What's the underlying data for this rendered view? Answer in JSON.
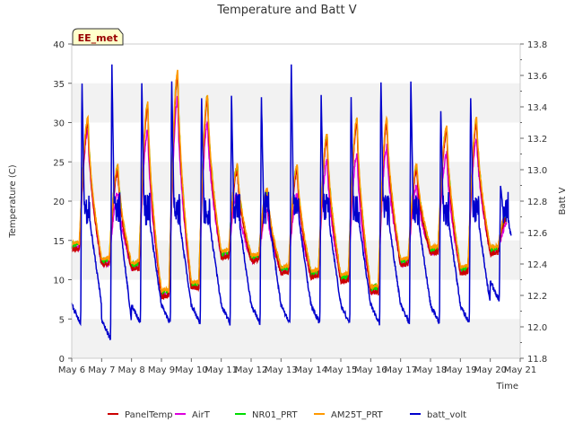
{
  "chart_data": {
    "type": "line",
    "title": "Temperature and Batt V",
    "xlabel": "Time",
    "ylabel": "Temperature (C)",
    "y2label": "Batt V",
    "badge": "EE_met",
    "grid": "horizontal bands",
    "legend_position": "bottom",
    "x_range": [
      "May 6",
      "May 21"
    ],
    "xticks": [
      "May 6",
      "May 7",
      "May 8",
      "May 9",
      "May 10",
      "May 11",
      "May 12",
      "May 13",
      "May 14",
      "May 15",
      "May 16",
      "May 17",
      "May 18",
      "May 19",
      "May 20",
      "May 21"
    ],
    "ylim": [
      0,
      40
    ],
    "yticks": [
      "0",
      "5",
      "10",
      "15",
      "20",
      "25",
      "30",
      "35",
      "40"
    ],
    "y2lim": [
      11.8,
      13.8
    ],
    "y2ticks": [
      "11.8",
      "12.0",
      "12.2",
      "12.4",
      "12.6",
      "12.8",
      "13.0",
      "13.2",
      "13.4",
      "13.6",
      "13.8"
    ],
    "colors": {
      "PanelTemp": "#cc0000",
      "AirT": "#dd00dd",
      "NR01_PRT": "#00dd00",
      "AM25T_PRT": "#ff9900",
      "batt_volt": "#0000cc"
    },
    "days": [
      "May 6",
      "May 7",
      "May 8",
      "May 9",
      "May 10",
      "May 11",
      "May 12",
      "May 13",
      "May 14",
      "May 15",
      "May 16",
      "May 17",
      "May 18",
      "May 19",
      "May 20"
    ],
    "daily_min_temp": [
      14,
      12,
      11.5,
      8,
      9,
      13,
      12.5,
      11,
      10.5,
      10,
      8.5,
      12,
      13.5,
      11,
      13.5
    ],
    "daily_max_temp": [
      30,
      24,
      32,
      36,
      33,
      24,
      21,
      24,
      28,
      30,
      30,
      24,
      29,
      30,
      18
    ],
    "daily_max_airt": [
      29,
      21,
      29,
      33,
      30,
      21,
      19,
      21,
      25,
      26,
      27,
      22,
      26,
      28,
      17
    ],
    "batt_peak": [
      13.6,
      13.7,
      13.6,
      13.6,
      13.5,
      13.5,
      13.5,
      13.7,
      13.5,
      13.5,
      13.6,
      13.6,
      13.4,
      13.5,
      12.9
    ],
    "batt_min": [
      12.0,
      11.9,
      12.0,
      12.0,
      12.0,
      12.0,
      12.0,
      12.0,
      12.0,
      12.0,
      12.0,
      12.0,
      12.0,
      12.0,
      12.15
    ],
    "series": [
      {
        "name": "PanelTemp"
      },
      {
        "name": "AirT"
      },
      {
        "name": "NR01_PRT"
      },
      {
        "name": "AM25T_PRT"
      },
      {
        "name": "batt_volt"
      }
    ]
  }
}
